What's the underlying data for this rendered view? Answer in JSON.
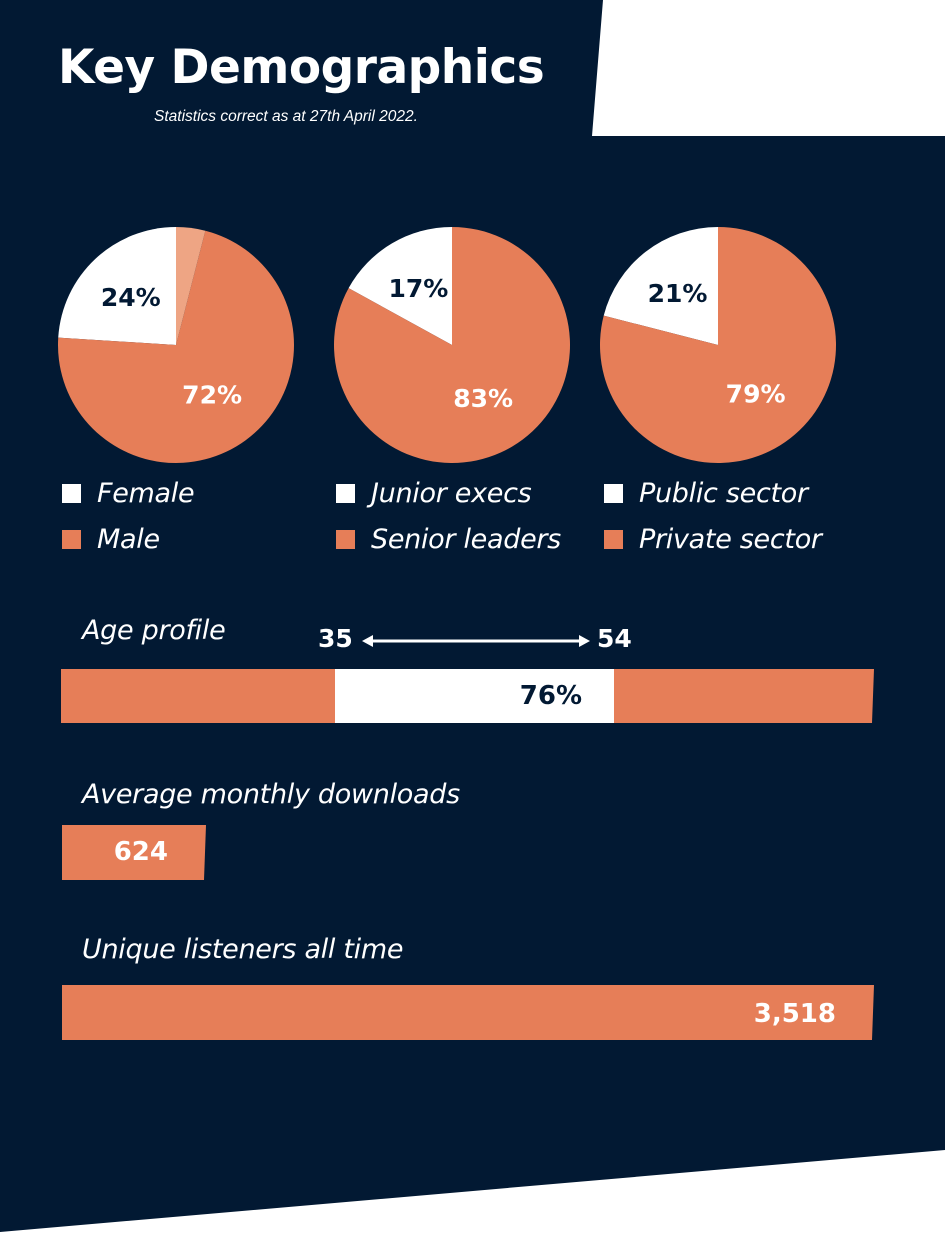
{
  "header": {
    "title": "Key Demographics",
    "subtitle": "Statistics correct as at 27th April 2022."
  },
  "colors": {
    "background": "#021933",
    "accent": "#e67e58",
    "accent_light": "#eea584",
    "white": "#ffffff"
  },
  "chart_data": [
    {
      "type": "pie",
      "slices": [
        {
          "name": "Female",
          "value": 24,
          "label": "24%",
          "color": "#ffffff"
        },
        {
          "name": "Male",
          "value": 72,
          "label": "72%",
          "color": "#e67e58"
        },
        {
          "name": "",
          "value": 4,
          "label": "",
          "color": "#eea584"
        }
      ],
      "legend": [
        "Female",
        "Male"
      ]
    },
    {
      "type": "pie",
      "slices": [
        {
          "name": "Junior execs",
          "value": 17,
          "label": "17%",
          "color": "#ffffff"
        },
        {
          "name": "Senior leaders",
          "value": 83,
          "label": "83%",
          "color": "#e67e58"
        }
      ],
      "legend": [
        "Junior execs",
        "Senior leaders"
      ]
    },
    {
      "type": "pie",
      "slices": [
        {
          "name": "Public sector",
          "value": 21,
          "label": "21%",
          "color": "#ffffff"
        },
        {
          "name": "Private sector",
          "value": 79,
          "label": "79%",
          "color": "#e67e58"
        }
      ],
      "legend": [
        "Public sector",
        "Private sector"
      ]
    },
    {
      "type": "bar",
      "title": "Age profile",
      "range": {
        "from": "35",
        "to": "54"
      },
      "highlight_share": 76,
      "value_label": "76%"
    },
    {
      "type": "bar",
      "title": "Average monthly downloads",
      "value": 624,
      "value_label": "624"
    },
    {
      "type": "bar",
      "title": "Unique listeners all time",
      "value": 3518,
      "value_label": "3,518"
    }
  ]
}
